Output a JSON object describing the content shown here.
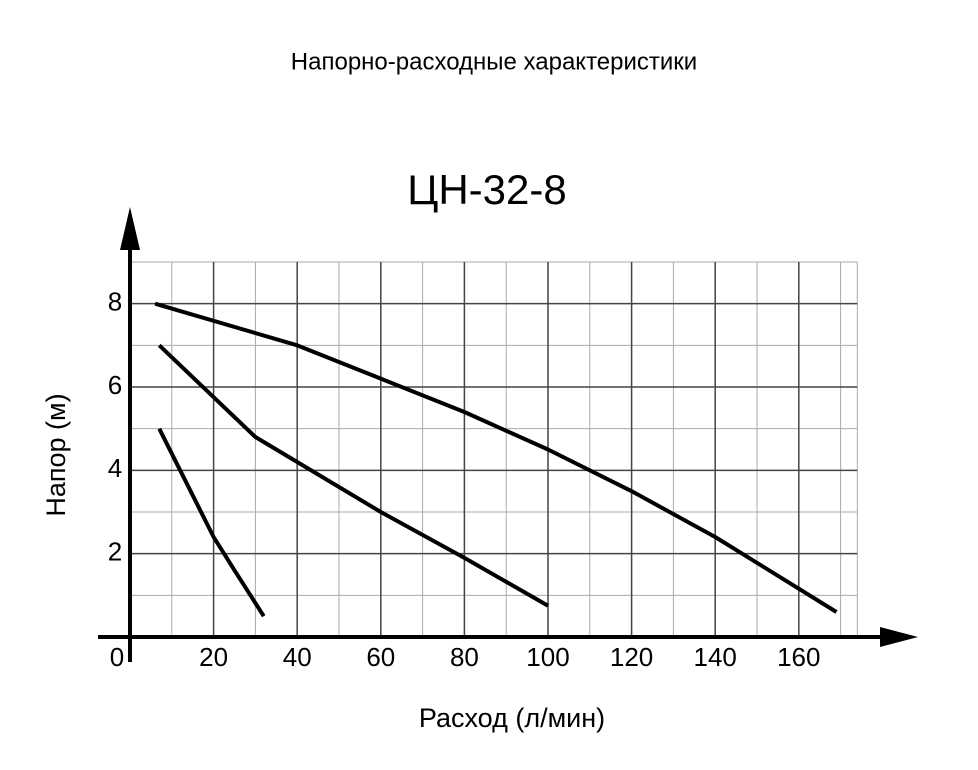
{
  "chart_data": {
    "type": "line",
    "page_title": "Напорно-расходные характеристики",
    "title": "ЦН-32-8",
    "x_label": "Расход (л/мин)",
    "y_label": "Напор (м)",
    "xlim": [
      0,
      174
    ],
    "ylim": [
      0,
      9
    ],
    "xticks": [
      0,
      20,
      40,
      60,
      80,
      100,
      120,
      140,
      160
    ],
    "yticks": [
      2,
      4,
      6,
      8
    ],
    "grid": true,
    "series": [
      {
        "color": "#000000",
        "x": [
          6,
          40,
          60,
          80,
          100,
          120,
          140,
          169
        ],
        "values": [
          8,
          7.0,
          6.2,
          5.4,
          4.5,
          3.5,
          2.4,
          0.6
        ]
      },
      {
        "color": "#000000",
        "x": [
          7,
          30,
          40,
          60,
          80,
          100
        ],
        "values": [
          7,
          4.8,
          4.2,
          3.0,
          1.9,
          0.75
        ]
      },
      {
        "color": "#000000",
        "x": [
          7,
          15,
          20,
          25,
          32
        ],
        "values": [
          5,
          3.4,
          2.4,
          1.6,
          0.5
        ]
      }
    ]
  }
}
